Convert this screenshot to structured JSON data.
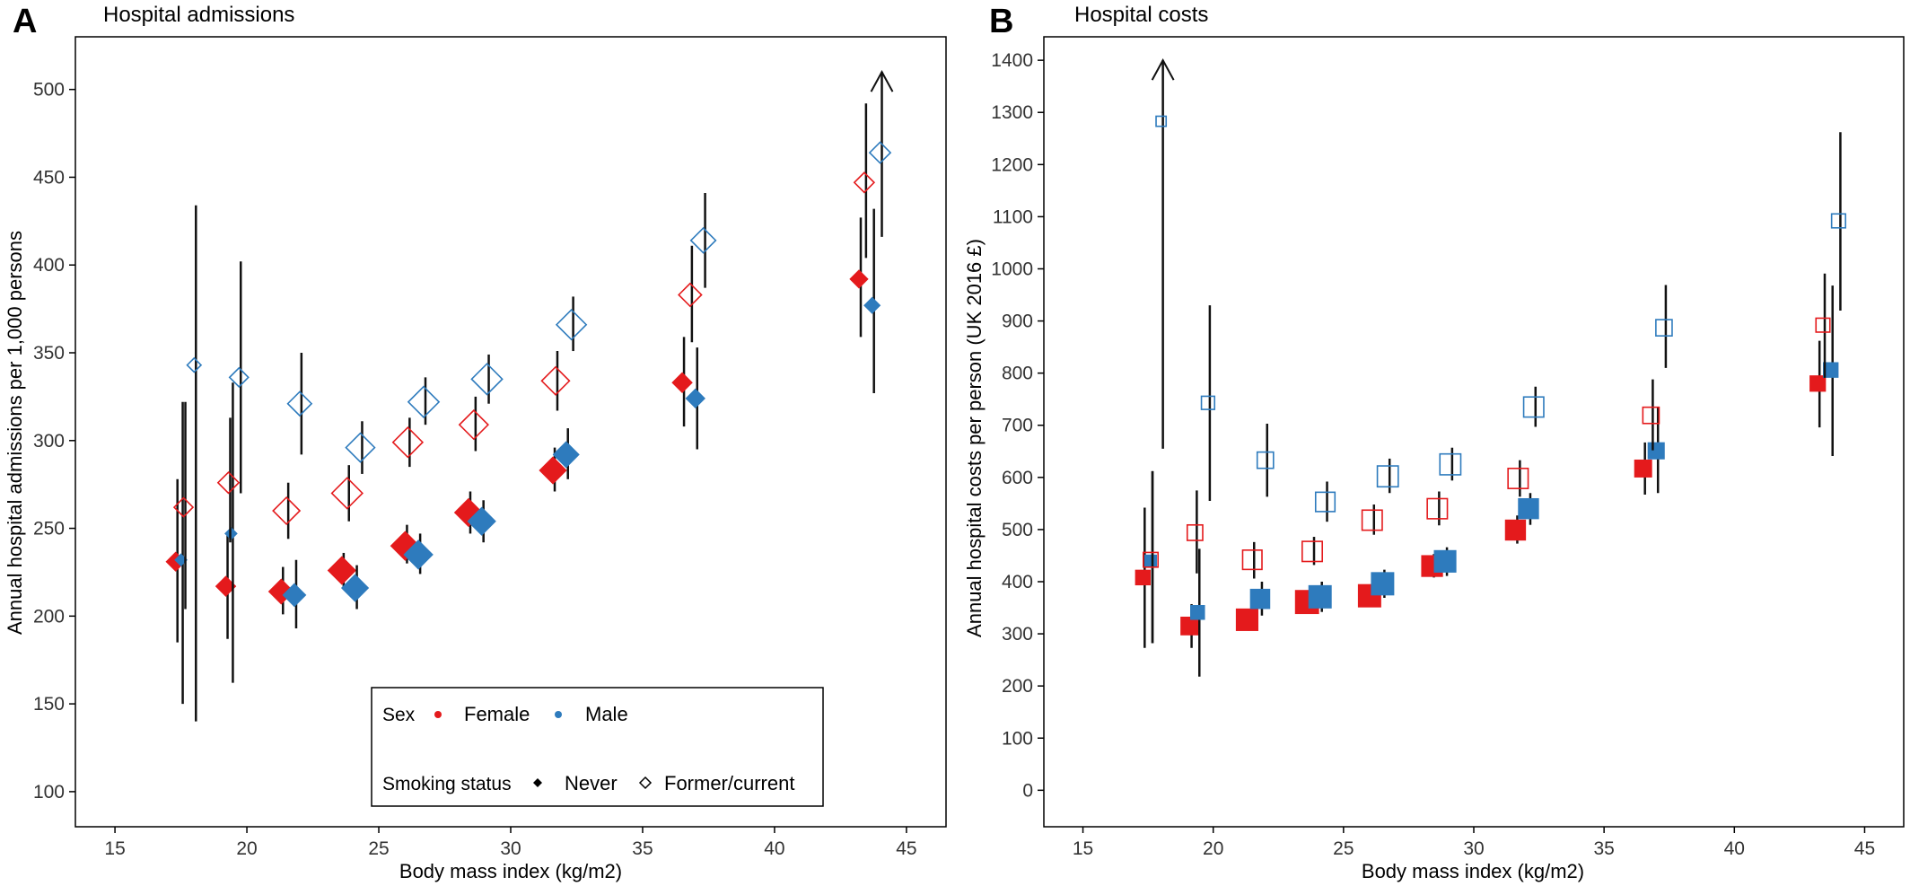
{
  "figure": {
    "legend": {
      "sex_title": "Sex",
      "female_label": "Female",
      "male_label": "Male",
      "smoking_title": "Smoking status",
      "never_label": "Never",
      "former_label": "Former/current"
    }
  },
  "colors": {
    "female": "#e41a1c",
    "male": "#2e7bbd",
    "errorbar": "#111111",
    "axis": "#000000"
  },
  "chart_data": [
    {
      "type": "scatter",
      "panel_letter": "A",
      "title": "Hospital admissions",
      "xlabel": "Body mass index (kg/m2)",
      "ylabel": "Annual hospital admissions per 1,000 persons",
      "xlim": [
        13.5,
        46.5
      ],
      "ylim": [
        80,
        530
      ],
      "xticks": [
        15,
        20,
        25,
        30,
        35,
        40,
        45
      ],
      "yticks": [
        100,
        150,
        200,
        250,
        300,
        350,
        400,
        450,
        500
      ],
      "marker_shape": "diamond",
      "grid": false,
      "legend_position": "bottom-center",
      "series": [
        {
          "name": "Female, Never",
          "sex": "female",
          "smoking": "never",
          "points": [
            {
              "x": 17.3,
              "y": 231,
              "lo": 185,
              "hi": 278,
              "w": 1.0
            },
            {
              "x": 19.2,
              "y": 217,
              "lo": 187,
              "hi": 247,
              "w": 1.1
            },
            {
              "x": 21.3,
              "y": 214,
              "lo": 201,
              "hi": 228,
              "w": 1.6
            },
            {
              "x": 23.6,
              "y": 226,
              "lo": 216,
              "hi": 236,
              "w": 1.9
            },
            {
              "x": 26.0,
              "y": 240,
              "lo": 230,
              "hi": 252,
              "w": 2.0
            },
            {
              "x": 28.4,
              "y": 259,
              "lo": 247,
              "hi": 271,
              "w": 1.9
            },
            {
              "x": 31.6,
              "y": 283,
              "lo": 271,
              "hi": 296,
              "w": 1.8
            },
            {
              "x": 36.5,
              "y": 333,
              "lo": 308,
              "hi": 359,
              "w": 1.1
            },
            {
              "x": 43.2,
              "y": 392,
              "lo": 359,
              "hi": 427,
              "w": 0.9
            }
          ]
        },
        {
          "name": "Male, Never",
          "sex": "male",
          "smoking": "never",
          "points": [
            {
              "x": 17.5,
              "y": 232,
              "lo": 150,
              "hi": 322,
              "w": 0.3
            },
            {
              "x": 19.4,
              "y": 247,
              "lo": 162,
              "hi": 333,
              "w": 0.3
            },
            {
              "x": 21.8,
              "y": 212,
              "lo": 193,
              "hi": 232,
              "w": 1.4
            },
            {
              "x": 24.1,
              "y": 216,
              "lo": 204,
              "hi": 229,
              "w": 1.8
            },
            {
              "x": 26.5,
              "y": 235,
              "lo": 224,
              "hi": 247,
              "w": 2.0
            },
            {
              "x": 28.9,
              "y": 254,
              "lo": 242,
              "hi": 266,
              "w": 1.9
            },
            {
              "x": 32.1,
              "y": 292,
              "lo": 278,
              "hi": 307,
              "w": 1.7
            },
            {
              "x": 37.0,
              "y": 324,
              "lo": 295,
              "hi": 353,
              "w": 1.0
            },
            {
              "x": 43.7,
              "y": 377,
              "lo": 327,
              "hi": 432,
              "w": 0.7
            }
          ]
        },
        {
          "name": "Female, Former/current",
          "sex": "female",
          "smoking": "former",
          "points": [
            {
              "x": 17.6,
              "y": 262,
              "lo": 204,
              "hi": 322,
              "w": 1.0
            },
            {
              "x": 19.3,
              "y": 276,
              "lo": 242,
              "hi": 313,
              "w": 1.2
            },
            {
              "x": 21.5,
              "y": 260,
              "lo": 244,
              "hi": 276,
              "w": 1.8
            },
            {
              "x": 23.8,
              "y": 270,
              "lo": 254,
              "hi": 286,
              "w": 2.2
            },
            {
              "x": 26.1,
              "y": 299,
              "lo": 285,
              "hi": 313,
              "w": 2.1
            },
            {
              "x": 28.6,
              "y": 309,
              "lo": 294,
              "hi": 325,
              "w": 2.0
            },
            {
              "x": 31.7,
              "y": 334,
              "lo": 317,
              "hi": 351,
              "w": 1.9
            },
            {
              "x": 36.8,
              "y": 383,
              "lo": 356,
              "hi": 411,
              "w": 1.4
            },
            {
              "x": 43.4,
              "y": 447,
              "lo": 404,
              "hi": 492,
              "w": 1.1
            }
          ]
        },
        {
          "name": "Male, Former/current",
          "sex": "male",
          "smoking": "former",
          "points": [
            {
              "x": 18.0,
              "y": 343,
              "lo": 140,
              "hi": 434,
              "w": 0.5
            },
            {
              "x": 19.7,
              "y": 336,
              "lo": 270,
              "hi": 402,
              "w": 1.0
            },
            {
              "x": 22.0,
              "y": 321,
              "lo": 292,
              "hi": 350,
              "w": 1.5
            },
            {
              "x": 24.3,
              "y": 296,
              "lo": 281,
              "hi": 311,
              "w": 2.0
            },
            {
              "x": 26.7,
              "y": 322,
              "lo": 309,
              "hi": 336,
              "w": 2.2
            },
            {
              "x": 29.1,
              "y": 335,
              "lo": 321,
              "hi": 349,
              "w": 2.2
            },
            {
              "x": 32.3,
              "y": 366,
              "lo": 351,
              "hi": 382,
              "w": 2.1
            },
            {
              "x": 37.3,
              "y": 414,
              "lo": 387,
              "hi": 441,
              "w": 1.6
            },
            {
              "x": 44.0,
              "y": 464,
              "lo": 416,
              "hi": 510,
              "w": 1.2,
              "hi_arrow": true
            }
          ]
        }
      ]
    },
    {
      "type": "scatter",
      "panel_letter": "B",
      "title": "Hospital costs",
      "xlabel": "Body mass index (kg/m2)",
      "ylabel": "Annual hospital costs per person (UK 2016 £)",
      "xlim": [
        13.5,
        46.5
      ],
      "ylim": [
        -70,
        1445
      ],
      "xticks": [
        15,
        20,
        25,
        30,
        35,
        40,
        45
      ],
      "yticks": [
        0,
        100,
        200,
        300,
        400,
        500,
        600,
        700,
        800,
        900,
        1000,
        1100,
        1200,
        1300,
        1400
      ],
      "marker_shape": "square",
      "grid": false,
      "series": [
        {
          "name": "Female, Never",
          "sex": "female",
          "smoking": "never",
          "points": [
            {
              "x": 17.3,
              "y": 408,
              "lo": 273,
              "hi": 542,
              "w": 1.0
            },
            {
              "x": 19.1,
              "y": 315,
              "lo": 273,
              "hi": 357,
              "w": 1.4
            },
            {
              "x": 21.3,
              "y": 327,
              "lo": 306,
              "hi": 348,
              "w": 1.9
            },
            {
              "x": 23.6,
              "y": 361,
              "lo": 340,
              "hi": 383,
              "w": 2.1
            },
            {
              "x": 26.0,
              "y": 373,
              "lo": 352,
              "hi": 395,
              "w": 2.0
            },
            {
              "x": 28.4,
              "y": 430,
              "lo": 408,
              "hi": 453,
              "w": 1.8
            },
            {
              "x": 31.6,
              "y": 499,
              "lo": 473,
              "hi": 527,
              "w": 1.7
            },
            {
              "x": 36.5,
              "y": 617,
              "lo": 567,
              "hi": 667,
              "w": 1.3
            },
            {
              "x": 43.2,
              "y": 780,
              "lo": 696,
              "hi": 862,
              "w": 1.1
            }
          ]
        },
        {
          "name": "Male, Never",
          "sex": "male",
          "smoking": "never",
          "points": [
            {
              "x": 17.6,
              "y": 440,
              "lo": 282,
              "hi": 612,
              "w": 0.6
            },
            {
              "x": 19.4,
              "y": 341,
              "lo": 218,
              "hi": 463,
              "w": 0.9
            },
            {
              "x": 21.8,
              "y": 367,
              "lo": 335,
              "hi": 400,
              "w": 1.6
            },
            {
              "x": 24.1,
              "y": 371,
              "lo": 342,
              "hi": 400,
              "w": 2.0
            },
            {
              "x": 26.5,
              "y": 396,
              "lo": 369,
              "hi": 423,
              "w": 2.0
            },
            {
              "x": 28.9,
              "y": 439,
              "lo": 411,
              "hi": 466,
              "w": 1.9
            },
            {
              "x": 32.1,
              "y": 540,
              "lo": 509,
              "hi": 570,
              "w": 1.7
            },
            {
              "x": 37.0,
              "y": 651,
              "lo": 570,
              "hi": 734,
              "w": 1.2
            },
            {
              "x": 43.7,
              "y": 806,
              "lo": 641,
              "hi": 968,
              "w": 1.0
            }
          ]
        },
        {
          "name": "Female, Former/current",
          "sex": "female",
          "smoking": "former",
          "points": [
            {
              "x": 17.6,
              "y": 442,
              "lo": 282,
              "hi": 612,
              "w": 1.0
            },
            {
              "x": 19.3,
              "y": 494,
              "lo": 416,
              "hi": 575,
              "w": 1.1
            },
            {
              "x": 21.5,
              "y": 442,
              "lo": 406,
              "hi": 476,
              "w": 1.6
            },
            {
              "x": 23.8,
              "y": 458,
              "lo": 432,
              "hi": 486,
              "w": 1.7
            },
            {
              "x": 26.1,
              "y": 518,
              "lo": 490,
              "hi": 548,
              "w": 1.7
            },
            {
              "x": 28.6,
              "y": 540,
              "lo": 508,
              "hi": 573,
              "w": 1.7
            },
            {
              "x": 31.7,
              "y": 598,
              "lo": 563,
              "hi": 633,
              "w": 1.7
            },
            {
              "x": 36.8,
              "y": 719,
              "lo": 652,
              "hi": 788,
              "w": 1.2
            },
            {
              "x": 43.4,
              "y": 892,
              "lo": 791,
              "hi": 991,
              "w": 0.9
            }
          ]
        },
        {
          "name": "Male, Former/current",
          "sex": "male",
          "smoking": "former",
          "points": [
            {
              "x": 18.0,
              "y": 1283,
              "lo": 655,
              "hi": 1400,
              "w": 0.4,
              "hi_arrow": true
            },
            {
              "x": 19.8,
              "y": 743,
              "lo": 555,
              "hi": 930,
              "w": 0.8
            },
            {
              "x": 22.0,
              "y": 633,
              "lo": 563,
              "hi": 703,
              "w": 1.2
            },
            {
              "x": 24.3,
              "y": 553,
              "lo": 515,
              "hi": 592,
              "w": 1.6
            },
            {
              "x": 26.7,
              "y": 602,
              "lo": 570,
              "hi": 636,
              "w": 1.8
            },
            {
              "x": 29.1,
              "y": 625,
              "lo": 594,
              "hi": 657,
              "w": 1.8
            },
            {
              "x": 32.3,
              "y": 735,
              "lo": 697,
              "hi": 774,
              "w": 1.7
            },
            {
              "x": 37.3,
              "y": 887,
              "lo": 810,
              "hi": 969,
              "w": 1.2
            },
            {
              "x": 44.0,
              "y": 1092,
              "lo": 920,
              "hi": 1262,
              "w": 0.9
            }
          ]
        }
      ]
    }
  ]
}
